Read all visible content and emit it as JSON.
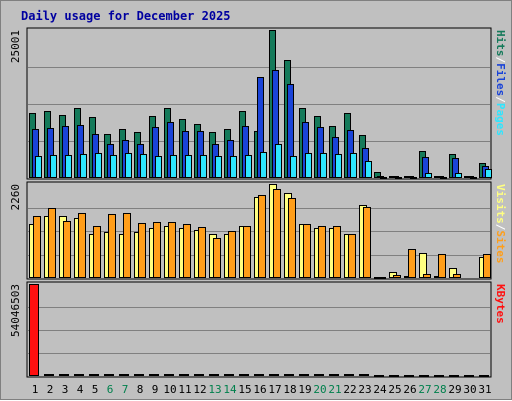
{
  "colors": {
    "frame": "#c0c0c0",
    "plot_bg": "#c0c0c0",
    "gridline": "#808080",
    "weekday_label": "#000000",
    "weekend_label": "#00804c",
    "hits": "#157a5a",
    "files": "#1a44d8",
    "pages": "#2ee6ff",
    "visits": "#ffff80",
    "sites": "#ff9e1a",
    "kbytes": "#ff1010",
    "separator": "#ffffff"
  },
  "chart_data": {
    "type": "bar",
    "title": "Daily usage for December 2025",
    "categories": [
      "1",
      "2",
      "3",
      "4",
      "5",
      "6",
      "7",
      "8",
      "9",
      "10",
      "11",
      "12",
      "13",
      "14",
      "15",
      "16",
      "17",
      "18",
      "19",
      "20",
      "21",
      "22",
      "23",
      "24",
      "25",
      "26",
      "27",
      "28",
      "29",
      "30",
      "31"
    ],
    "weekend_days": [
      "6",
      "7",
      "13",
      "14",
      "20",
      "21",
      "27",
      "28"
    ],
    "panels": [
      {
        "name": "hits_files_pages",
        "ymax_label": "25001",
        "ymax": 25001,
        "legend": [
          "Pages",
          "Files",
          "Hits"
        ],
        "series": [
          {
            "name": "Hits",
            "color_key": "hits",
            "values": [
              10900,
              11300,
              10700,
              11800,
              10300,
              7500,
              8300,
              7700,
              10500,
              11800,
              10000,
              9200,
              7700,
              8200,
              11300,
              8000,
              25001,
              20000,
              11800,
              10500,
              8800,
              10900,
              7200,
              1000,
              400,
              400,
              4500,
              400,
              4000,
              400,
              2500
            ]
          },
          {
            "name": "Files",
            "color_key": "files",
            "values": [
              8200,
              8400,
              8700,
              9000,
              7500,
              5800,
              6500,
              5800,
              8600,
              9400,
              7900,
              7900,
              5800,
              6400,
              8800,
              17000,
              18300,
              15900,
              9400,
              8600,
              6900,
              8100,
              5000,
              300,
              300,
              300,
              3600,
              300,
              3300,
              300,
              2000
            ]
          },
          {
            "name": "Pages",
            "color_key": "pages",
            "values": [
              3700,
              3900,
              3900,
              4100,
              4300,
              3900,
              4200,
              4100,
              3800,
              3900,
              3900,
              3900,
              3800,
              3800,
              3900,
              4400,
              5800,
              3800,
              4200,
              4300,
              4000,
              4300,
              2800,
              100,
              100,
              100,
              900,
              100,
              800,
              100,
              1500
            ]
          }
        ]
      },
      {
        "name": "visits_sites",
        "ymax_label": "2260",
        "ymax": 2260,
        "legend": [
          "Sites",
          "Visits"
        ],
        "series": [
          {
            "name": "Visits",
            "color_key": "visits",
            "values": [
              1300,
              1500,
              1480,
              1450,
              1050,
              1100,
              1050,
              1100,
              1200,
              1250,
              1200,
              1150,
              1050,
              1050,
              1250,
              1950,
              2250,
              2050,
              1300,
              1200,
              1200,
              1050,
              1750,
              20,
              150,
              50,
              600,
              50,
              250,
              10,
              500
            ]
          },
          {
            "name": "Sites",
            "color_key": "sites",
            "values": [
              1480,
              1680,
              1380,
              1570,
              1250,
              1550,
              1570,
              1330,
              1350,
              1350,
              1310,
              1220,
              960,
              1140,
              1250,
              2000,
              2150,
              1930,
              1290,
              1240,
              1240,
              1050,
              1710,
              20,
              70,
              700,
              100,
              570,
              100,
              0,
              570
            ]
          }
        ]
      },
      {
        "name": "kbytes",
        "ymax_label": "54046503",
        "ymax": 54046503,
        "legend": [
          "KBytes"
        ],
        "series": [
          {
            "name": "KBytes",
            "color_key": "kbytes",
            "values": [
              54046503,
              1400000,
              1400000,
              1400000,
              1400000,
              1400000,
              1400000,
              1400000,
              1400000,
              1400000,
              1400000,
              1400000,
              1400000,
              1400000,
              1400000,
              1400000,
              1400000,
              1400000,
              1400000,
              1400000,
              1400000,
              1400000,
              1400000,
              400000,
              400000,
              400000,
              400000,
              400000,
              400000,
              400000,
              400000
            ]
          }
        ]
      }
    ],
    "grid": true
  }
}
